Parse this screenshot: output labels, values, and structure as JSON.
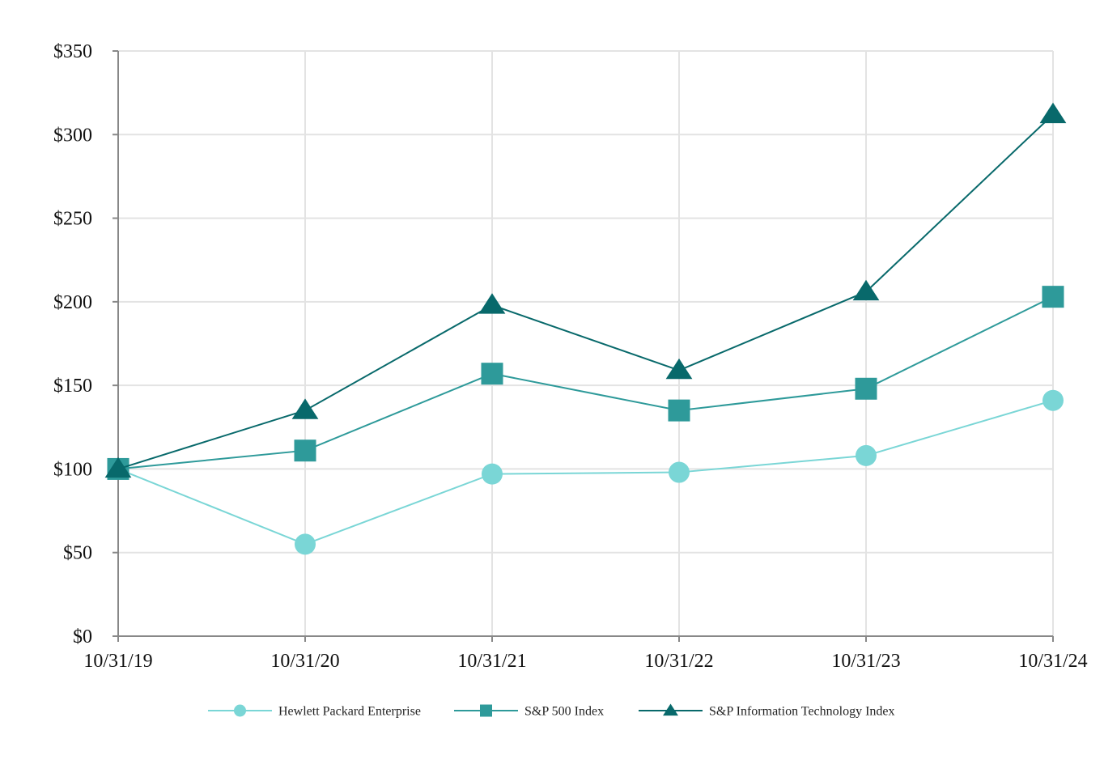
{
  "chart_data": {
    "type": "line",
    "title": "",
    "xlabel": "",
    "ylabel": "",
    "categories": [
      "10/31/19",
      "10/31/20",
      "10/31/21",
      "10/31/22",
      "10/31/23",
      "10/31/24"
    ],
    "y_ticks": [
      0,
      50,
      100,
      150,
      200,
      250,
      300,
      350
    ],
    "y_tick_labels": [
      "$0",
      "$50",
      "$100",
      "$150",
      "$200",
      "$250",
      "$300",
      "$350"
    ],
    "ylim": [
      0,
      350
    ],
    "grid": true,
    "legend_position": "bottom",
    "series": [
      {
        "name": "Hewlett Packard Enterprise",
        "marker": "circle",
        "color": "#7ad6d6",
        "values": [
          100,
          55,
          97,
          98,
          108,
          141
        ]
      },
      {
        "name": "S&P 500 Index",
        "marker": "square",
        "color": "#2e9a9a",
        "values": [
          100,
          111,
          157,
          135,
          148,
          203
        ]
      },
      {
        "name": "S&P Information Technology Index",
        "marker": "triangle",
        "color": "#08696b",
        "values": [
          100,
          135,
          198,
          159,
          206,
          312
        ]
      }
    ]
  }
}
